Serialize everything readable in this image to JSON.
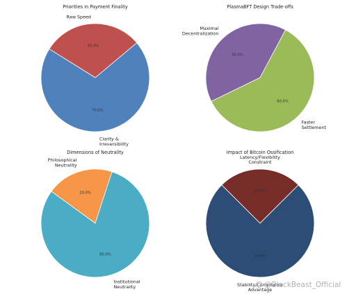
{
  "chart_data": [
    {
      "type": "pie",
      "title": "Priorities in Payment Finality",
      "categories": [
        "Raw Speed",
        "Clarity & Irreversibility"
      ],
      "label_lines": [
        [
          "Raw Speed"
        ],
        [
          "Clarity &",
          "Irreversibility"
        ]
      ],
      "values": [
        30.0,
        70.0
      ],
      "value_labels": [
        "30.0%",
        "70.0%"
      ],
      "colors": [
        "#c0504d",
        "#4f81bd"
      ]
    },
    {
      "type": "pie",
      "title": "PlasmaBFT Design Trade-offs",
      "categories": [
        "Maximal Decentralization",
        "Faster Settlement"
      ],
      "label_lines": [
        [
          "Maximal",
          "Decentralization"
        ],
        [
          "Faster",
          "Settlement"
        ]
      ],
      "values": [
        40.0,
        60.0
      ],
      "value_labels": [
        "40.0%",
        "60.0%"
      ],
      "colors": [
        "#8064a2",
        "#9bbb59"
      ]
    },
    {
      "type": "pie",
      "title": "Dimensions of Neutrality",
      "categories": [
        "Philosophical Neutrality",
        "Institutional Neutrality"
      ],
      "label_lines": [
        [
          "Philosophical",
          "Neutrality"
        ],
        [
          "Institutional",
          "Neutrality"
        ]
      ],
      "values": [
        20.0,
        80.0
      ],
      "value_labels": [
        "20.0%",
        "80.0%"
      ],
      "colors": [
        "#f79646",
        "#4bacc6"
      ]
    },
    {
      "type": "pie",
      "title": "Impact of Bitcoin Ossification",
      "categories": [
        "Latency/Flexibility Constraint",
        "Stability/Compliance Advantage"
      ],
      "label_lines": [
        [
          "Latency/Flexibility",
          "Constraint"
        ],
        [
          "Stability/Compliance",
          "Advantage"
        ]
      ],
      "values": [
        25.0,
        75.0
      ],
      "value_labels": [
        "25.0%",
        "75.0%"
      ],
      "colors": [
        "#772c2a",
        "#2c4d75"
      ]
    }
  ],
  "watermark": "@BlockBeast_Official"
}
